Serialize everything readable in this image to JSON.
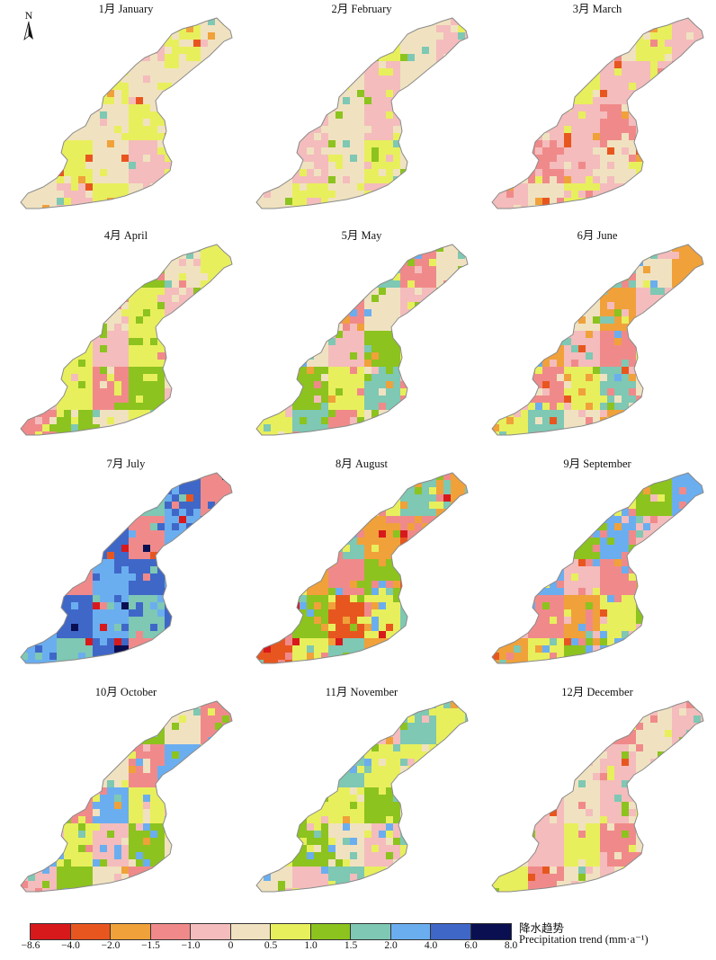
{
  "north_arrow": "N",
  "panels": [
    {
      "title": "1月 January",
      "dominant": [
        6,
        7,
        6,
        5,
        7,
        6
      ],
      "accents": [
        2,
        9,
        3
      ]
    },
    {
      "title": "2月 February",
      "dominant": [
        6,
        5,
        6,
        7,
        6,
        5
      ],
      "accents": [
        8,
        9,
        7
      ]
    },
    {
      "title": "3月 March",
      "dominant": [
        5,
        4,
        5,
        6,
        7,
        5
      ],
      "accents": [
        3,
        2,
        7
      ]
    },
    {
      "title": "4月 April",
      "dominant": [
        5,
        7,
        4,
        8,
        6,
        7
      ],
      "accents": [
        9,
        5,
        8
      ]
    },
    {
      "title": "5月 May",
      "dominant": [
        5,
        8,
        7,
        9,
        4,
        6
      ],
      "accents": [
        10,
        3,
        8
      ]
    },
    {
      "title": "6月 June",
      "dominant": [
        5,
        4,
        7,
        9,
        6,
        3
      ],
      "accents": [
        10,
        2,
        8
      ]
    },
    {
      "title": "7月 July",
      "dominant": [
        10,
        11,
        10,
        9,
        11,
        4
      ],
      "accents": [
        12,
        1,
        2
      ]
    },
    {
      "title": "8月 August",
      "dominant": [
        4,
        8,
        2,
        7,
        9,
        3
      ],
      "accents": [
        1,
        10,
        3
      ]
    },
    {
      "title": "9月 September",
      "dominant": [
        5,
        4,
        3,
        7,
        8,
        10
      ],
      "accents": [
        2,
        9,
        4
      ]
    },
    {
      "title": "10月 October",
      "dominant": [
        10,
        7,
        5,
        8,
        6,
        4
      ],
      "accents": [
        9,
        3,
        10
      ]
    },
    {
      "title": "11月 November",
      "dominant": [
        7,
        8,
        6,
        5,
        9,
        7
      ],
      "accents": [
        10,
        3,
        8
      ]
    },
    {
      "title": "12月 December",
      "dominant": [
        6,
        5,
        7,
        4,
        6,
        5
      ],
      "accents": [
        2,
        9,
        8
      ]
    }
  ],
  "legend": {
    "title_cn": "降水趋势",
    "title_en": "Precipitation trend (mm·a⁻¹)",
    "ticks": [
      "−8.6",
      "−4.0",
      "−2.0",
      "−1.5",
      "−1.0",
      "0",
      "0.5",
      "1.0",
      "1.5",
      "2.0",
      "4.0",
      "6.0",
      "8.0"
    ],
    "colors": [
      "#d7191c",
      "#e8561f",
      "#f0a13a",
      "#f08a8a",
      "#f4bcbc",
      "#f0e2c0",
      "#e8ef5c",
      "#8cc31e",
      "#7ec8b4",
      "#6aaef0",
      "#3f67c8",
      "#0a0f52"
    ]
  }
}
